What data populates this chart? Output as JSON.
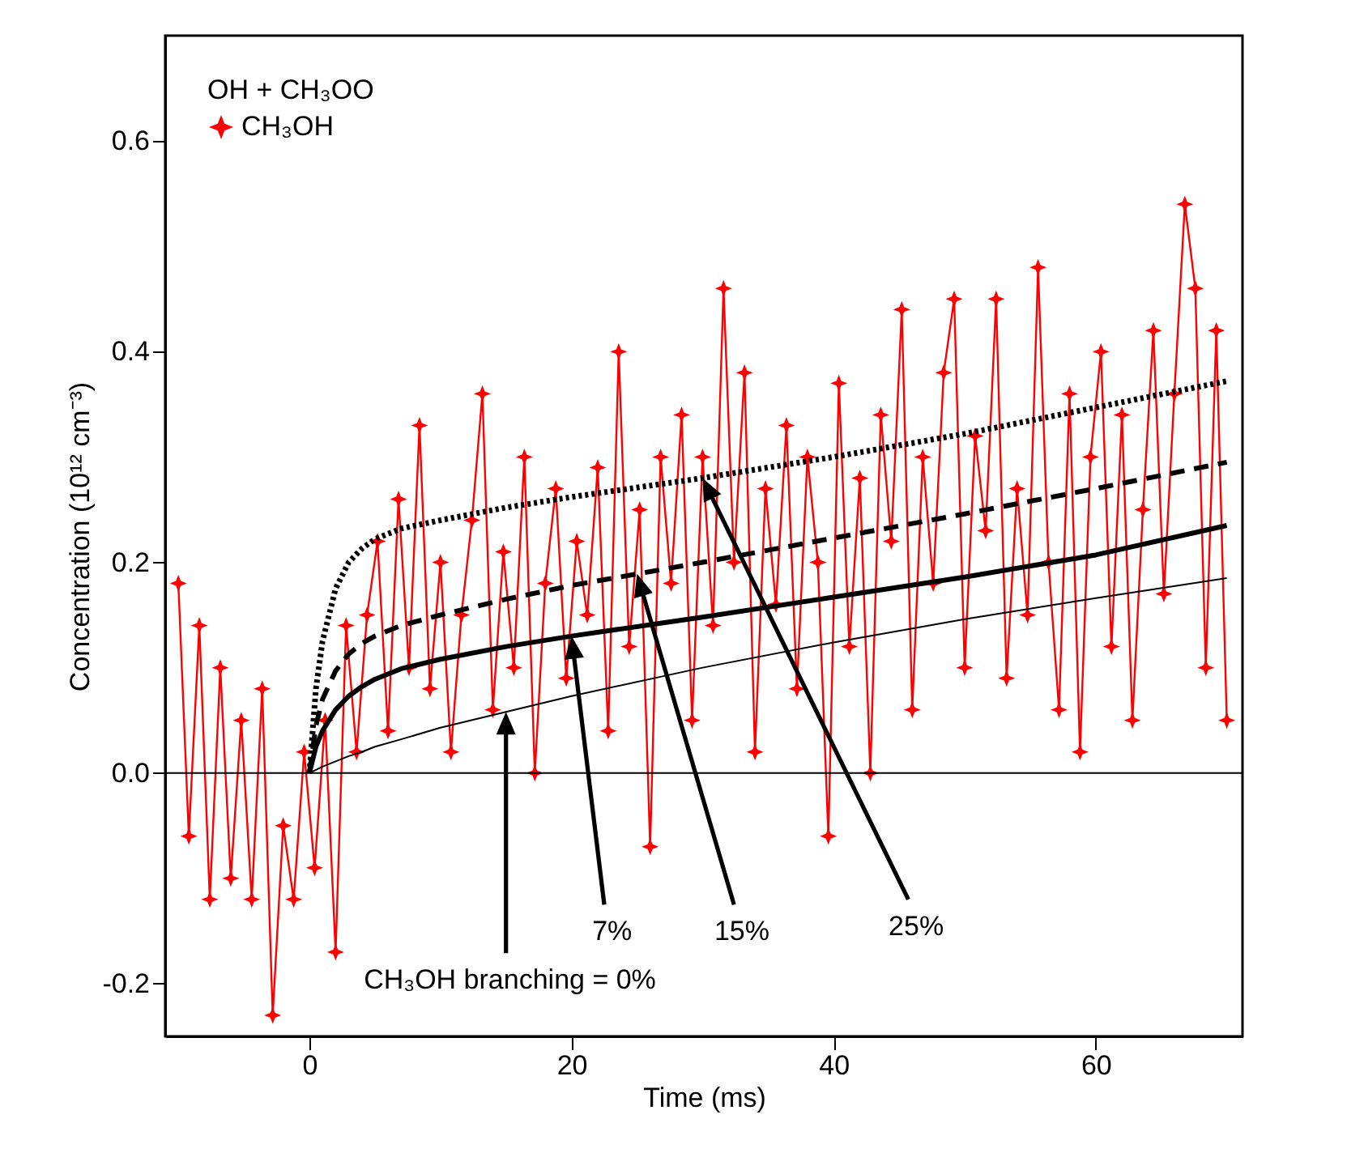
{
  "chart_data": {
    "type": "line",
    "xlabel": "Time (ms)",
    "ylabel": "Concentration (10¹² cm⁻³)",
    "legend_title": "OH + CH₃OO",
    "legend": "top left",
    "grid": false,
    "xlim": [
      -11,
      71.2
    ],
    "xticks": [
      0,
      20,
      40,
      60
    ],
    "ylim": [
      -0.25,
      0.7
    ],
    "yticks": [
      {
        "value": -0.2,
        "label": "-0.2"
      },
      {
        "value": 0,
        "label": "0.0"
      },
      {
        "value": 0.2,
        "label": "0.2"
      },
      {
        "value": 0.4,
        "label": "0.4"
      },
      {
        "value": 0.6,
        "label": "0.6"
      }
    ],
    "series": [
      {
        "name": "CH₃OH",
        "color": "#ff0000",
        "marker": "star",
        "line_style": "solid",
        "x": [
          -10,
          -9.2,
          -8.4,
          -7.6,
          -6.8,
          -6,
          -5.2,
          -4.4,
          -3.6,
          -2.8,
          -2,
          -1.2,
          -0.4,
          0.4,
          1.2,
          2,
          2.8,
          3.6,
          4.4,
          5.2,
          6,
          6.8,
          7.6,
          8.4,
          9.2,
          10,
          10.8,
          11.6,
          12.4,
          13.2,
          14,
          14.8,
          15.6,
          16.4,
          17.2,
          18,
          18.8,
          19.6,
          20.4,
          21.2,
          22,
          22.8,
          23.6,
          24.4,
          25.2,
          26,
          26.8,
          27.6,
          28.4,
          29.2,
          30,
          30.8,
          31.6,
          32.4,
          33.2,
          34,
          34.8,
          35.6,
          36.4,
          37.2,
          38,
          38.8,
          39.6,
          40.4,
          41.2,
          42,
          42.8,
          43.6,
          44.4,
          45.2,
          46,
          46.8,
          47.6,
          48.4,
          49.2,
          50,
          50.8,
          51.6,
          52.4,
          53.2,
          54,
          54.8,
          55.6,
          56.4,
          57.2,
          58,
          58.8,
          59.6,
          60.4,
          61.2,
          62,
          62.8,
          63.6,
          64.4,
          65.2,
          66,
          66.8,
          67.6,
          68.4,
          69.2,
          70
        ],
        "values": [
          0.18,
          -0.06,
          0.14,
          -0.12,
          0.1,
          -0.1,
          0.05,
          -0.12,
          0.08,
          -0.23,
          -0.05,
          -0.12,
          0.02,
          -0.09,
          0.05,
          -0.17,
          0.14,
          0.02,
          0.15,
          0.22,
          0.04,
          0.26,
          0.1,
          0.33,
          0.08,
          0.2,
          0.02,
          0.15,
          0.24,
          0.36,
          0.06,
          0.21,
          0.1,
          0.3,
          0.0,
          0.18,
          0.27,
          0.09,
          0.22,
          0.15,
          0.29,
          0.04,
          0.4,
          0.12,
          0.25,
          -0.07,
          0.3,
          0.18,
          0.34,
          0.05,
          0.3,
          0.14,
          0.46,
          0.2,
          0.38,
          0.02,
          0.27,
          0.16,
          0.33,
          0.08,
          0.3,
          0.2,
          -0.06,
          0.37,
          0.12,
          0.28,
          0.0,
          0.34,
          0.22,
          0.44,
          0.06,
          0.3,
          0.18,
          0.38,
          0.45,
          0.1,
          0.32,
          0.23,
          0.45,
          0.09,
          0.27,
          0.15,
          0.48,
          0.2,
          0.06,
          0.36,
          0.02,
          0.3,
          0.4,
          0.12,
          0.34,
          0.05,
          0.25,
          0.42,
          0.17,
          0.36,
          0.54,
          0.46,
          0.1,
          0.42,
          0.05
        ]
      },
      {
        "color": "#000000",
        "marker": "none",
        "line_style": "solid",
        "x": [
          0,
          0.5,
          1,
          2,
          3,
          4,
          5,
          7,
          10,
          15,
          20,
          30,
          40,
          50,
          60,
          70
        ],
        "values": [
          0,
          0.003,
          0.006,
          0.011,
          0.016,
          0.02,
          0.025,
          0.032,
          0.043,
          0.058,
          0.073,
          0.1,
          0.124,
          0.146,
          0.166,
          0.185
        ]
      },
      {
        "color": "#000000",
        "marker": "none",
        "line_style": "solid",
        "x": [
          0,
          0.5,
          1,
          2,
          3,
          4,
          5,
          7,
          10,
          15,
          20,
          30,
          40,
          50,
          60,
          70
        ],
        "values": [
          0,
          0.025,
          0.04,
          0.06,
          0.073,
          0.082,
          0.089,
          0.099,
          0.108,
          0.12,
          0.13,
          0.148,
          0.167,
          0.186,
          0.207,
          0.235
        ]
      },
      {
        "color": "#000000",
        "marker": "none",
        "line_style": "dashed",
        "x": [
          0,
          0.5,
          1,
          2,
          3,
          4,
          5,
          7,
          10,
          15,
          20,
          30,
          40,
          50,
          60,
          70
        ],
        "values": [
          0,
          0.045,
          0.07,
          0.097,
          0.113,
          0.123,
          0.13,
          0.14,
          0.15,
          0.165,
          0.178,
          0.2,
          0.223,
          0.246,
          0.27,
          0.295
        ]
      },
      {
        "color": "#000000",
        "marker": "none",
        "line_style": "dotted",
        "x": [
          0,
          0.5,
          1,
          2,
          3,
          4,
          5,
          7,
          10,
          15,
          20,
          30,
          40,
          50,
          60,
          70
        ],
        "values": [
          0,
          0.08,
          0.125,
          0.175,
          0.2,
          0.213,
          0.222,
          0.232,
          0.24,
          0.252,
          0.262,
          0.28,
          0.3,
          0.322,
          0.347,
          0.372
        ]
      }
    ],
    "ref_lines": [
      {
        "axis": "y",
        "value": 0,
        "color": "#000000"
      }
    ],
    "annotations": [
      "CH₃OH branching = 0%",
      "7%",
      "15%",
      "25%"
    ]
  }
}
